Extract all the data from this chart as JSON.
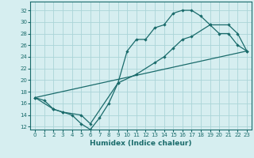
{
  "xlabel": "Humidex (Indice chaleur)",
  "ylabel": "",
  "bg_color": "#d6eef0",
  "grid_color": "#aad4d8",
  "line_color": "#1a6b6b",
  "xlim": [
    -0.5,
    23.5
  ],
  "ylim": [
    11.5,
    33.5
  ],
  "xticks": [
    0,
    1,
    2,
    3,
    4,
    5,
    6,
    7,
    8,
    9,
    10,
    11,
    12,
    13,
    14,
    15,
    16,
    17,
    18,
    19,
    20,
    21,
    22,
    23
  ],
  "yticks": [
    12,
    14,
    16,
    18,
    20,
    22,
    24,
    26,
    28,
    30,
    32
  ],
  "line1_x": [
    0,
    1,
    2,
    3,
    4,
    5,
    6,
    7,
    8,
    9,
    10,
    11,
    12,
    13,
    14,
    15,
    16,
    17,
    18,
    19,
    20,
    21,
    22,
    23
  ],
  "line1_y": [
    17,
    16.5,
    15,
    14.5,
    14,
    12.5,
    11.5,
    13.5,
    16,
    19.5,
    25,
    27,
    27,
    29,
    29.5,
    31.5,
    32,
    32,
    31,
    29.5,
    28,
    28,
    26,
    25
  ],
  "line2_x": [
    0,
    2,
    3,
    5,
    6,
    9,
    11,
    13,
    14,
    15,
    16,
    17,
    19,
    21,
    22,
    23
  ],
  "line2_y": [
    17,
    15,
    14.5,
    14,
    12.5,
    19.5,
    21,
    23,
    24,
    25.5,
    27,
    27.5,
    29.5,
    29.5,
    28,
    25
  ],
  "line3_x": [
    0,
    23
  ],
  "line3_y": [
    17,
    25
  ]
}
